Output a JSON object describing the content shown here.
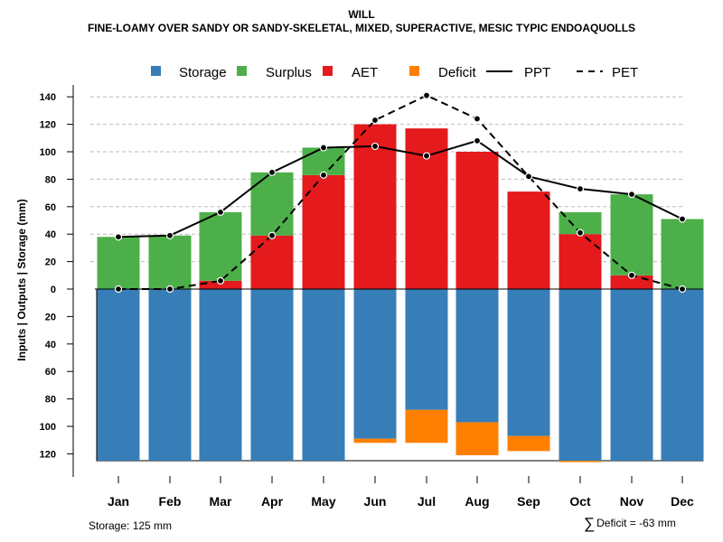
{
  "chart_data": {
    "type": "bar",
    "title": "WILL",
    "subtitle": "FINE-LOAMY OVER SANDY OR SANDY-SKELETAL, MIXED, SUPERACTIVE, MESIC TYPIC ENDOAQUOLLS",
    "ylabel": "Inputs | Outputs | Storage     (mm)",
    "xlabel": "",
    "categories": [
      "Jan",
      "Feb",
      "Mar",
      "Apr",
      "May",
      "Jun",
      "Jul",
      "Aug",
      "Sep",
      "Oct",
      "Nov",
      "Dec"
    ],
    "ylim": [
      -125,
      145
    ],
    "y_ticks": [
      140,
      120,
      100,
      80,
      60,
      40,
      20,
      0,
      -20,
      -40,
      -60,
      -80,
      -100,
      -120
    ],
    "y_tick_labels": [
      "140",
      "120",
      "100",
      "80",
      "60",
      "40",
      "20",
      "0",
      "20",
      "40",
      "60",
      "80",
      "100",
      "120"
    ],
    "grid": "horizontal dashed above zero",
    "legend_position": "top",
    "colors": {
      "storage": "#377EB8",
      "surplus": "#4DAF4A",
      "aet": "#E41A1C",
      "deficit": "#FF7F00",
      "grid": "#bbbbbb"
    },
    "series": [
      {
        "name": "Storage",
        "kind": "bar-below",
        "values": [
          125,
          125,
          125,
          125,
          125,
          109,
          88,
          97,
          107,
          125,
          125,
          125
        ]
      },
      {
        "name": "Surplus",
        "kind": "bar-above",
        "values": [
          38,
          39,
          50,
          46,
          20,
          0,
          0,
          0,
          0,
          16,
          59,
          51
        ]
      },
      {
        "name": "AET",
        "kind": "bar-above",
        "values": [
          0,
          0,
          6,
          39,
          83,
          120,
          117,
          100,
          71,
          40,
          10,
          0
        ]
      },
      {
        "name": "Deficit",
        "kind": "bar-below",
        "values": [
          0,
          0,
          0,
          0,
          0,
          3,
          24,
          24,
          11,
          1,
          0,
          0
        ]
      },
      {
        "name": "PPT",
        "kind": "line-solid",
        "values": [
          38,
          39,
          56,
          85,
          103,
          104,
          97,
          108,
          82,
          73,
          69,
          51
        ]
      },
      {
        "name": "PET",
        "kind": "line-dashed",
        "values": [
          0,
          0,
          6,
          39,
          83,
          123,
          141,
          124,
          82,
          41,
          10,
          0
        ]
      }
    ],
    "legend": [
      "Storage",
      "Surplus",
      "AET",
      "Deficit",
      "PPT",
      "PET"
    ]
  },
  "footer": {
    "storage_note": "Storage: 125 mm",
    "deficit_note": "Deficit = -63 mm",
    "deficit_symbol": "∑"
  }
}
